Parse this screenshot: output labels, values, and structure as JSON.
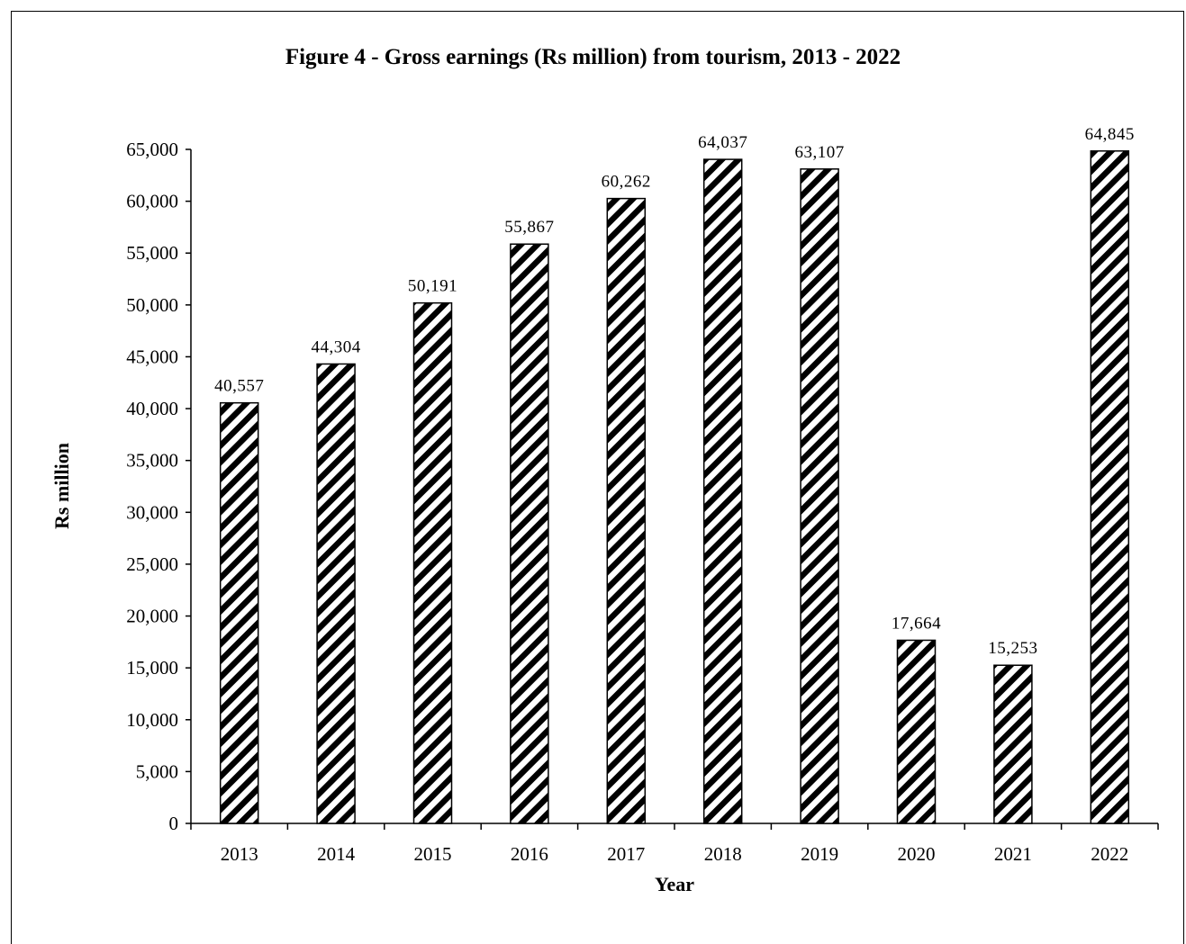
{
  "chart_data": {
    "type": "bar",
    "title": "Figure 4 - Gross earnings (Rs million) from tourism, 2013 - 2022",
    "xlabel": "Year",
    "ylabel": "Rs million",
    "categories": [
      "2013",
      "2014",
      "2015",
      "2016",
      "2017",
      "2018",
      "2019",
      "2020",
      "2021",
      "2022"
    ],
    "values": [
      40557,
      44304,
      50191,
      55867,
      60262,
      64037,
      63107,
      17664,
      15253,
      64845
    ],
    "data_labels": [
      "40,557",
      "44,304",
      "50,191",
      "55,867",
      "60,262",
      "64,037",
      "63,107",
      "17,664",
      "15,253",
      "64,845"
    ],
    "ylim": [
      0,
      65000
    ],
    "yticks": [
      0,
      5000,
      10000,
      15000,
      20000,
      25000,
      30000,
      35000,
      40000,
      45000,
      50000,
      55000,
      60000,
      65000
    ],
    "ytick_labels": [
      "0",
      "5,000",
      "10,000",
      "15,000",
      "20,000",
      "25,000",
      "30,000",
      "35,000",
      "40,000",
      "45,000",
      "50,000",
      "55,000",
      "60,000",
      "65,000"
    ],
    "grid": false,
    "legend": "none",
    "bar_fill": "diagonal-hatch",
    "colors": {
      "bar_stroke": "#000000",
      "hatch": "#000000",
      "background": "#ffffff"
    }
  }
}
